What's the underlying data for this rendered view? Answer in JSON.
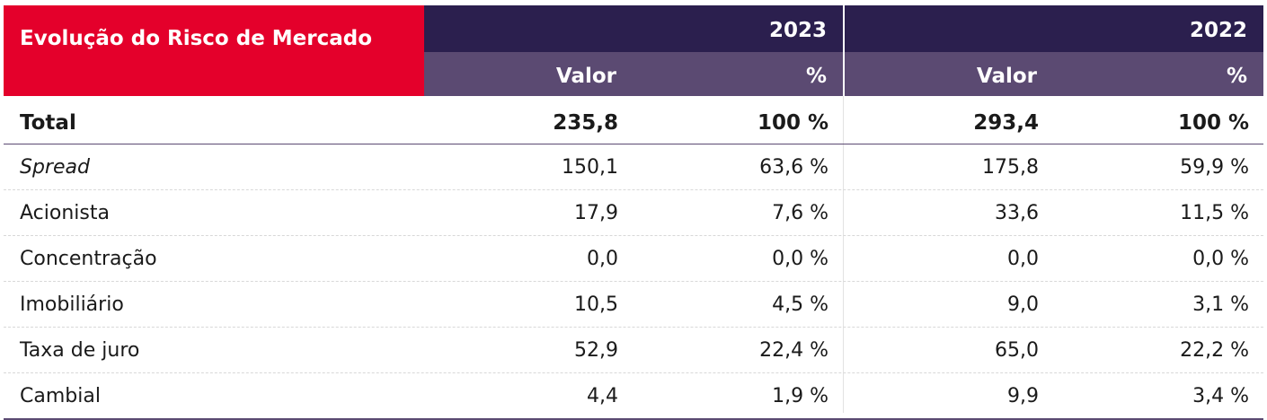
{
  "table": {
    "title": "Evolução do Risco de Mercado",
    "years": [
      "2023",
      "2022"
    ],
    "sub_headers": {
      "value": "Valor",
      "percent": "%"
    },
    "total": {
      "label": "Total",
      "v2023": "235,8",
      "p2023": "100 %",
      "v2022": "293,4",
      "p2022": "100 %"
    },
    "rows": [
      {
        "label": "Spread",
        "v2023": "150,1",
        "p2023": "63,6 %",
        "v2022": "175,8",
        "p2022": "59,9 %"
      },
      {
        "label": "Acionista",
        "v2023": "17,9",
        "p2023": "7,6 %",
        "v2022": "33,6",
        "p2022": "11,5 %"
      },
      {
        "label": "Concentração",
        "v2023": "0,0",
        "p2023": "0,0 %",
        "v2022": "0,0",
        "p2022": "0,0 %"
      },
      {
        "label": "Imobiliário",
        "v2023": "10,5",
        "p2023": "4,5 %",
        "v2022": "9,0",
        "p2022": "3,1 %"
      },
      {
        "label": "Taxa de juro",
        "v2023": "52,9",
        "p2023": "22,4 %",
        "v2022": "65,0",
        "p2022": "22,2 %"
      },
      {
        "label": "Cambial",
        "v2023": "4,4",
        "p2023": "1,9 %",
        "v2022": "9,9",
        "p2022": "3,4 %"
      }
    ]
  }
}
